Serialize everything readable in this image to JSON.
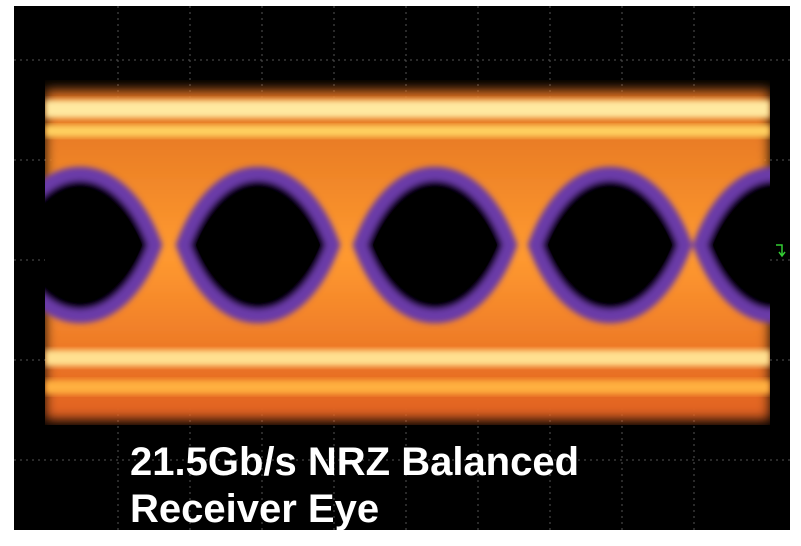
{
  "caption": {
    "line1": "21.5Gb/s NRZ Balanced",
    "line2": "Receiver Eye"
  }
}
